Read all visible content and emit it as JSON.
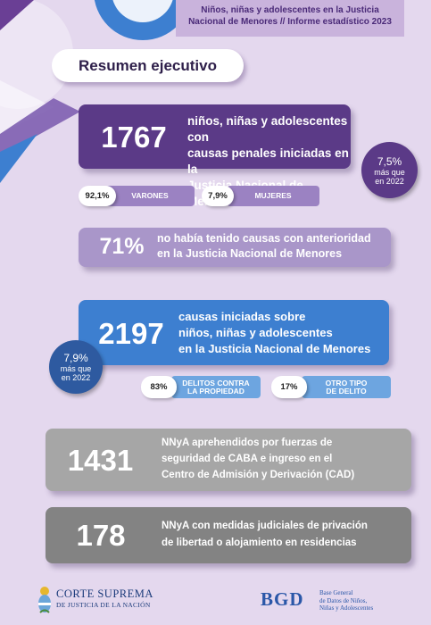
{
  "header": {
    "line1": "Niños, niñas y adolescentes en la Justicia",
    "line2": "Nacional de Menores // Informe estadístico 2023"
  },
  "title": "Resumen ejecutivo",
  "card1": {
    "number": "1767",
    "line1": "niños, niñas y adolescentes con",
    "line2": "causas penales iniciadas en la",
    "line3": "Justicia Nacional de Menores",
    "color": "#5b3a87"
  },
  "badge1": {
    "pct": "7,5%",
    "line1": "más que",
    "line2": "en 2022"
  },
  "gender": {
    "boys": {
      "value": "92,1%",
      "label": "VARONES"
    },
    "girls": {
      "value": "7,9%",
      "label": "MUJERES"
    }
  },
  "card2": {
    "number": "71%",
    "line1": "no había tenido causas con anterioridad",
    "line2": "en la Justicia Nacional de Menores"
  },
  "card3": {
    "number": "2197",
    "line1": "causas iniciadas sobre",
    "line2": "niños, niñas y adolescentes",
    "line3": "en la Justicia Nacional de Menores"
  },
  "badge2": {
    "pct": "7,9%",
    "line1": "más que",
    "line2": "en 2022"
  },
  "crimes": {
    "property": {
      "value": "83%",
      "label1": "DELITOS CONTRA",
      "label2": "LA PROPIEDAD"
    },
    "other": {
      "value": "17%",
      "label1": "OTRO TIPO",
      "label2": "DE DELITO"
    }
  },
  "card4": {
    "number": "1431",
    "line1": "NNyA aprehendidos por fuerzas de",
    "line2": "seguridad de CABA e ingreso en el",
    "line3": "Centro de Admisión y Derivación (CAD)"
  },
  "card5": {
    "number": "178",
    "line1": "NNyA con medidas judiciales de privación",
    "line2": "de libertad o alojamiento en residencias"
  },
  "footer": {
    "court_line1": "CORTE SUPREMA",
    "court_line2": "DE JUSTICIA DE LA NACIÓN",
    "bgd": "BGD",
    "bgd_line1": "Base General",
    "bgd_line2": "de Datos de Niños,",
    "bgd_line3": "Niñas y Adolescentes"
  }
}
